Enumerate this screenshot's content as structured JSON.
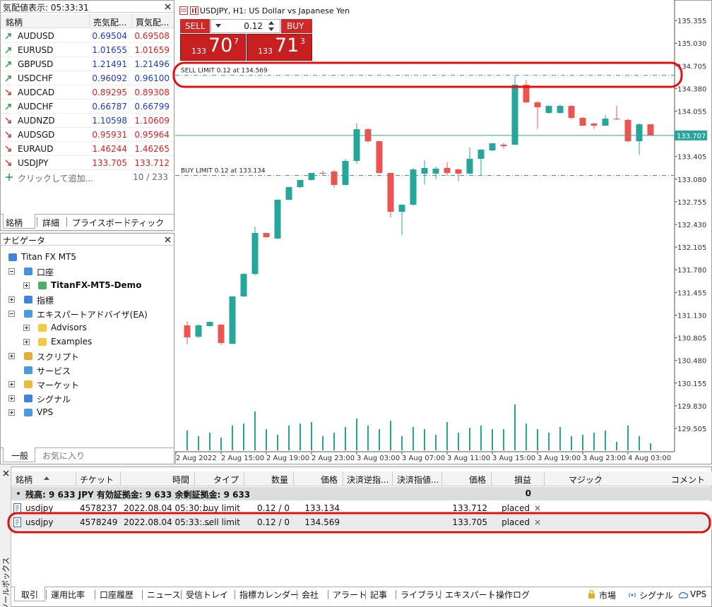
{
  "market_watch": {
    "title": "気配値表示: 05:33:31",
    "headers": [
      "銘柄",
      "売気配...",
      "買気配..."
    ],
    "rows": [
      {
        "symbol": "AUDUSD",
        "bid": "0.69504",
        "ask": "0.69508",
        "trend": "up",
        "bid_color": "#1a3ccc",
        "ask_color": "#e02020"
      },
      {
        "symbol": "EURUSD",
        "bid": "1.01655",
        "ask": "1.01659",
        "trend": "up",
        "bid_color": "#1a3ccc",
        "ask_color": "#e02020"
      },
      {
        "symbol": "GBPUSD",
        "bid": "1.21491",
        "ask": "1.21496",
        "trend": "up",
        "bid_color": "#1a3ccc",
        "ask_color": "#1a3ccc"
      },
      {
        "symbol": "USDCHF",
        "bid": "0.96092",
        "ask": "0.96100",
        "trend": "up",
        "bid_color": "#1a3ccc",
        "ask_color": "#1a3ccc"
      },
      {
        "symbol": "AUDCAD",
        "bid": "0.89295",
        "ask": "0.89308",
        "trend": "down",
        "bid_color": "#e02020",
        "ask_color": "#e02020"
      },
      {
        "symbol": "AUDCHF",
        "bid": "0.66787",
        "ask": "0.66799",
        "trend": "up",
        "bid_color": "#1a3ccc",
        "ask_color": "#1a3ccc"
      },
      {
        "symbol": "AUDNZD",
        "bid": "1.10598",
        "ask": "1.10609",
        "trend": "down",
        "bid_color": "#1a3ccc",
        "ask_color": "#e02020"
      },
      {
        "symbol": "AUDSGD",
        "bid": "0.95931",
        "ask": "0.95964",
        "trend": "down",
        "bid_color": "#e02020",
        "ask_color": "#e02020"
      },
      {
        "symbol": "EURAUD",
        "bid": "1.46244",
        "ask": "1.46265",
        "trend": "down",
        "bid_color": "#e02020",
        "ask_color": "#e02020"
      },
      {
        "symbol": "USDJPY",
        "bid": "133.705",
        "ask": "133.712",
        "trend": "down",
        "bid_color": "#e02020",
        "ask_color": "#e02020"
      }
    ],
    "add_label": "クリックして追加...",
    "count": "10 / 233",
    "tabs": [
      "銘柄",
      "詳細",
      "プライスボード",
      "ティック"
    ]
  },
  "navigator": {
    "title": "ナビゲータ",
    "items": [
      {
        "label": "Titan FX MT5",
        "level": 0,
        "tree": "none",
        "bold": false
      },
      {
        "label": "口座",
        "level": 1,
        "tree": "open",
        "bold": false
      },
      {
        "label": "TitanFX-MT5-Demo",
        "level": 2,
        "tree": "closed",
        "bold": true
      },
      {
        "label": "指標",
        "level": 1,
        "tree": "closed",
        "bold": false
      },
      {
        "label": "エキスパートアドバイザ(EA)",
        "level": 1,
        "tree": "open",
        "bold": false
      },
      {
        "label": "Advisors",
        "level": 2,
        "tree": "closed",
        "bold": false
      },
      {
        "label": "Examples",
        "level": 2,
        "tree": "closed",
        "bold": false
      },
      {
        "label": "スクリプト",
        "level": 1,
        "tree": "closed",
        "bold": false
      },
      {
        "label": "サービス",
        "level": 1,
        "tree": "none",
        "bold": false
      },
      {
        "label": "マーケット",
        "level": 1,
        "tree": "closed",
        "bold": false
      },
      {
        "label": "シグナル",
        "level": 1,
        "tree": "closed",
        "bold": false
      },
      {
        "label": "VPS",
        "level": 1,
        "tree": "closed",
        "bold": false
      }
    ],
    "tabs": [
      "一般",
      "お気に入り"
    ]
  },
  "trade_panel": {
    "sell": "SELL",
    "buy": "BUY",
    "lot": "0.12",
    "sell_price": {
      "big": "133",
      "main": "70",
      "sup": "7"
    },
    "buy_price": {
      "big": "133",
      "main": "71",
      "sup": "3"
    }
  },
  "chart_data": {
    "type": "candlestick",
    "title": "USDJPY, H1: US Dollar vs Japanese Yen",
    "open": [
      130.983,
      130.821,
      130.973,
      130.993,
      130.72,
      131.398,
      131.721,
      132.308,
      132.228,
      132.784,
      132.966,
      133.068,
      133.169,
      133.189,
      132.997,
      133.341,
      133.796,
      133.624,
      133.169,
      132.612,
      132.713,
      133.159,
      133.159,
      133.24,
      133.219,
      133.159,
      133.371,
      133.493,
      133.574,
      133.574,
      134.434,
      134.181,
      134.029,
      134.029,
      134.13,
      133.958,
      133.877,
      133.847,
      133.948,
      133.928,
      133.624,
      133.867
    ],
    "high": [
      131.043,
      131.0,
      131.04,
      131.0,
      131.4,
      131.73,
      132.4,
      132.31,
      132.79,
      132.97,
      133.07,
      133.17,
      133.2,
      133.21,
      133.37,
      133.88,
      133.81,
      133.63,
      133.17,
      132.72,
      133.24,
      133.35,
      133.26,
      133.32,
      133.23,
      133.533,
      133.51,
      133.594,
      133.6,
      134.566,
      134.5,
      134.2,
      134.14,
      134.15,
      134.14,
      133.97,
      133.89,
      134.0,
      134.13,
      133.95,
      133.88,
      133.87
    ],
    "low": [
      130.71,
      130.8,
      130.96,
      130.7,
      130.71,
      131.39,
      131.7,
      132.24,
      132.22,
      132.78,
      132.95,
      133.06,
      133.14,
      132.96,
      132.99,
      133.3,
      133.6,
      133.16,
      132.53,
      132.28,
      132.7,
      133.0,
      133.08,
      133.13,
      133.05,
      133.15,
      133.13,
      133.48,
      133.52,
      133.57,
      134.17,
      133.8,
      134.02,
      134.02,
      133.94,
      133.84,
      133.8,
      133.84,
      133.93,
      133.61,
      133.43,
      133.7
    ],
    "close": [
      130.811,
      130.983,
      131.033,
      130.73,
      131.398,
      131.721,
      132.308,
      132.248,
      132.784,
      132.966,
      133.068,
      133.169,
      133.159,
      132.997,
      133.341,
      133.796,
      133.624,
      133.169,
      132.612,
      132.713,
      133.219,
      133.24,
      133.23,
      133.169,
      133.159,
      133.371,
      133.503,
      133.594,
      133.553,
      134.434,
      134.181,
      134.11,
      134.13,
      134.13,
      133.958,
      133.847,
      133.847,
      133.948,
      133.938,
      133.624,
      133.867,
      133.705
    ],
    "volume": [
      28,
      20,
      25,
      18,
      35,
      38,
      55,
      30,
      22,
      35,
      38,
      40,
      20,
      25,
      33,
      45,
      35,
      30,
      42,
      20,
      33,
      30,
      22,
      40,
      25,
      32,
      35,
      30,
      30,
      65,
      38,
      30,
      25,
      33,
      20,
      22,
      25,
      28,
      12,
      35,
      20,
      10
    ],
    "up_color": "#26a69a",
    "down_color": "#ef5350",
    "volume_color": "#26a69a",
    "ylim": [
      129.171,
      135.649
    ],
    "yticks": [
      135.355,
      {
        "value": 135.03,
        "label": "135.030"
      },
      134.705,
      {
        "value": 134.38,
        "label": "134.380"
      },
      134.055,
      {
        "value": 133.73,
        "label": "133.730"
      },
      133.405,
      {
        "value": 133.08,
        "label": "133.080"
      },
      132.755,
      {
        "value": 132.43,
        "label": "132.430"
      },
      132.105,
      {
        "value": 131.78,
        "label": "131.780"
      },
      131.455,
      {
        "value": 131.13,
        "label": "131.130"
      },
      130.805,
      {
        "value": 130.48,
        "label": "130.480"
      },
      130.155,
      {
        "value": 129.83,
        "label": "129.830"
      },
      129.505
    ],
    "time_labels": [
      "2 Aug 2022",
      "2 Aug 15:00",
      "2 Aug 19:00",
      "2 Aug 23:00",
      "3 Aug 03:00",
      "3 Aug 07:00",
      "3 Aug 11:00",
      "3 Aug 15:00",
      "3 Aug 19:00",
      "3 Aug 23:00",
      "4 Aug 03:00"
    ],
    "current_price": 133.707,
    "grid": false,
    "orders": [
      {
        "label": "SELL LIMIT 0.12 at 134.569",
        "price": 134.569
      },
      {
        "label": "BUY LIMIT 0.12 at 133.134",
        "price": 133.134
      }
    ],
    "order_color": "#3a9a8a"
  },
  "toolbox": {
    "side_title": "ツールボックス",
    "columns": [
      "銘柄",
      "チケット",
      "時間",
      "タイプ",
      "数量",
      "価格",
      "決済逆指...",
      "決済指値...",
      "価格",
      "損益",
      "マジック",
      "コメント"
    ],
    "balance": "残高: 9 633 JPY  有効証拠金: 9 633  余剰証拠金: 9 633",
    "balance_profit": "0",
    "orders": [
      {
        "symbol": "usdjpy",
        "ticket": "4578237",
        "time": "2022.08.04 05:30:...",
        "type": "buy limit",
        "volume": "0.12 / 0",
        "price": "133.134",
        "market_price": "133.712",
        "status": "placed"
      },
      {
        "symbol": "usdjpy",
        "ticket": "4578249",
        "time": "2022.08.04 05:33:...",
        "type": "sell limit",
        "volume": "0.12 / 0",
        "price": "134.569",
        "market_price": "133.705",
        "status": "placed"
      }
    ],
    "tabs": [
      "取引",
      "運用比率",
      "口座履歴",
      "ニュース",
      "受信トレイ",
      "指標カレンダー",
      "会社",
      "アラート",
      "記事",
      "ライブラリ",
      "エキスパート",
      "操作ログ"
    ],
    "badge": "7",
    "status": [
      "市場",
      "シグナル",
      "VPS"
    ]
  }
}
